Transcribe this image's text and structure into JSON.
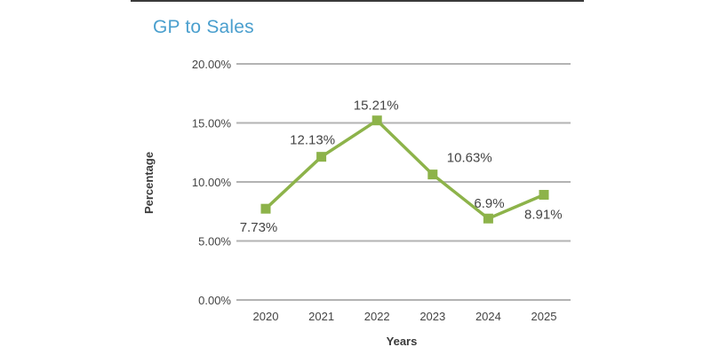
{
  "chart_data": {
    "type": "line",
    "title": "GP to Sales",
    "xlabel": "Years",
    "ylabel": "Percentage",
    "categories": [
      "2020",
      "2021",
      "2022",
      "2023",
      "2024",
      "2025"
    ],
    "series": [
      {
        "values": [
          7.73,
          12.13,
          15.21,
          10.63,
          6.9,
          8.91
        ],
        "data_labels": [
          "7.73%",
          "12.13%",
          "15.21%",
          "10.63%",
          "6.9%",
          "8.91%"
        ],
        "color": "#8db34a"
      }
    ],
    "ylim": [
      0,
      20
    ],
    "yticks": [
      0,
      5,
      10,
      15,
      20
    ],
    "ytick_labels": [
      "0.00%",
      "5.00%",
      "10.00%",
      "15.00%",
      "20.00%"
    ],
    "grid": true,
    "gridline_color": "#b3b3b3",
    "legend": "none"
  }
}
